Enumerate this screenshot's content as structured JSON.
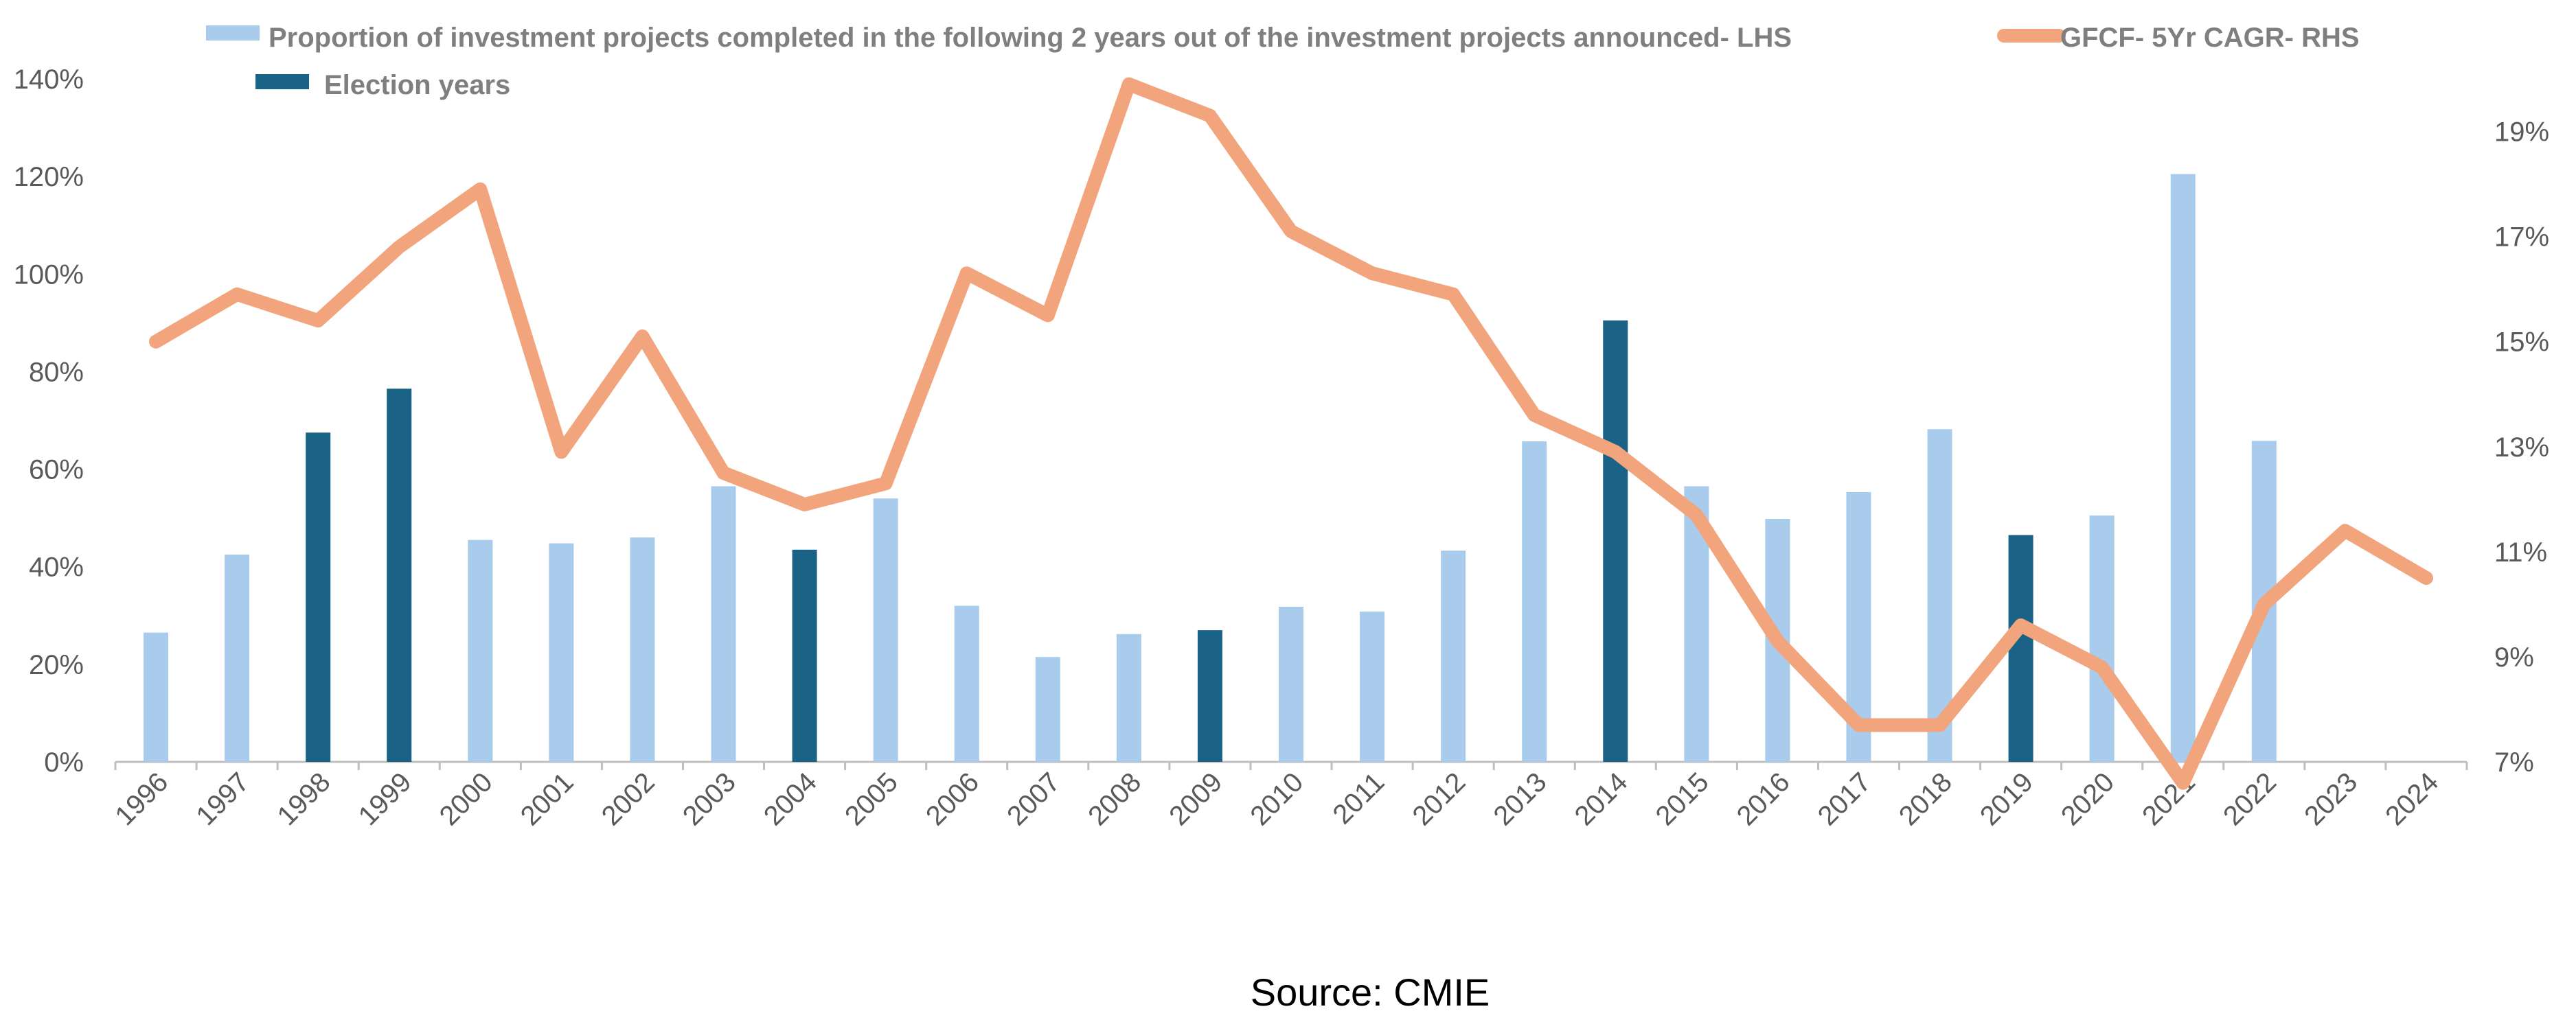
{
  "chart_data": {
    "type": "bar+line",
    "colors": {
      "bar": "#a9cbec",
      "election_bar": "#1a6387",
      "line": "#f2a57d",
      "axis": "#bfbfbf",
      "text": "#595959"
    },
    "categories": [
      "1996",
      "1997",
      "1998",
      "1999",
      "2000",
      "2001",
      "2002",
      "2003",
      "2004",
      "2005",
      "2006",
      "2007",
      "2008",
      "2009",
      "2010",
      "2011",
      "2012",
      "2013",
      "2014",
      "2015",
      "2016",
      "2017",
      "2018",
      "2019",
      "2020",
      "2021",
      "2022",
      "2023",
      "2024"
    ],
    "series": [
      {
        "name": "Proportion of investment projects completed in the following 2 years out of the investment projects announced- LHS",
        "type": "bar",
        "axis": "left",
        "values": [
          26.5,
          42.5,
          67.5,
          76.5,
          45.5,
          44.8,
          46,
          56.5,
          43.5,
          54,
          32,
          21.5,
          26.2,
          null,
          31.8,
          30.8,
          43.3,
          65.7,
          null,
          56.5,
          49.8,
          55.3,
          68.2,
          null,
          50.5,
          120.5,
          65.8,
          null,
          null
        ]
      },
      {
        "name": "Election years",
        "type": "bar",
        "axis": "left",
        "values": [
          null,
          null,
          67.5,
          76.5,
          null,
          null,
          null,
          null,
          43.5,
          null,
          null,
          null,
          null,
          27,
          null,
          null,
          null,
          null,
          90.5,
          null,
          null,
          null,
          null,
          46.5,
          null,
          null,
          null,
          null,
          null
        ]
      },
      {
        "name": "GFCF- 5Yr CAGR- RHS",
        "type": "line",
        "axis": "right",
        "values": [
          15.0,
          15.9,
          15.4,
          16.8,
          17.9,
          12.9,
          15.1,
          12.5,
          11.9,
          12.3,
          16.3,
          15.5,
          19.9,
          19.3,
          17.1,
          16.3,
          15.9,
          13.6,
          12.9,
          11.7,
          9.3,
          7.7,
          7.7,
          9.6,
          8.8,
          6.6,
          10.0,
          11.4,
          10.5
        ]
      }
    ],
    "ylim_left": [
      0,
      140
    ],
    "ylim_right": [
      7,
      20
    ],
    "yticks_left": [
      "0%",
      "20%",
      "40%",
      "60%",
      "80%",
      "100%",
      "120%",
      "140%"
    ],
    "yticks_right": [
      "7%",
      "9%",
      "11%",
      "13%",
      "15%",
      "17%",
      "19%"
    ],
    "legend_position": "top",
    "grid": false,
    "source": "Source: CMIE"
  }
}
